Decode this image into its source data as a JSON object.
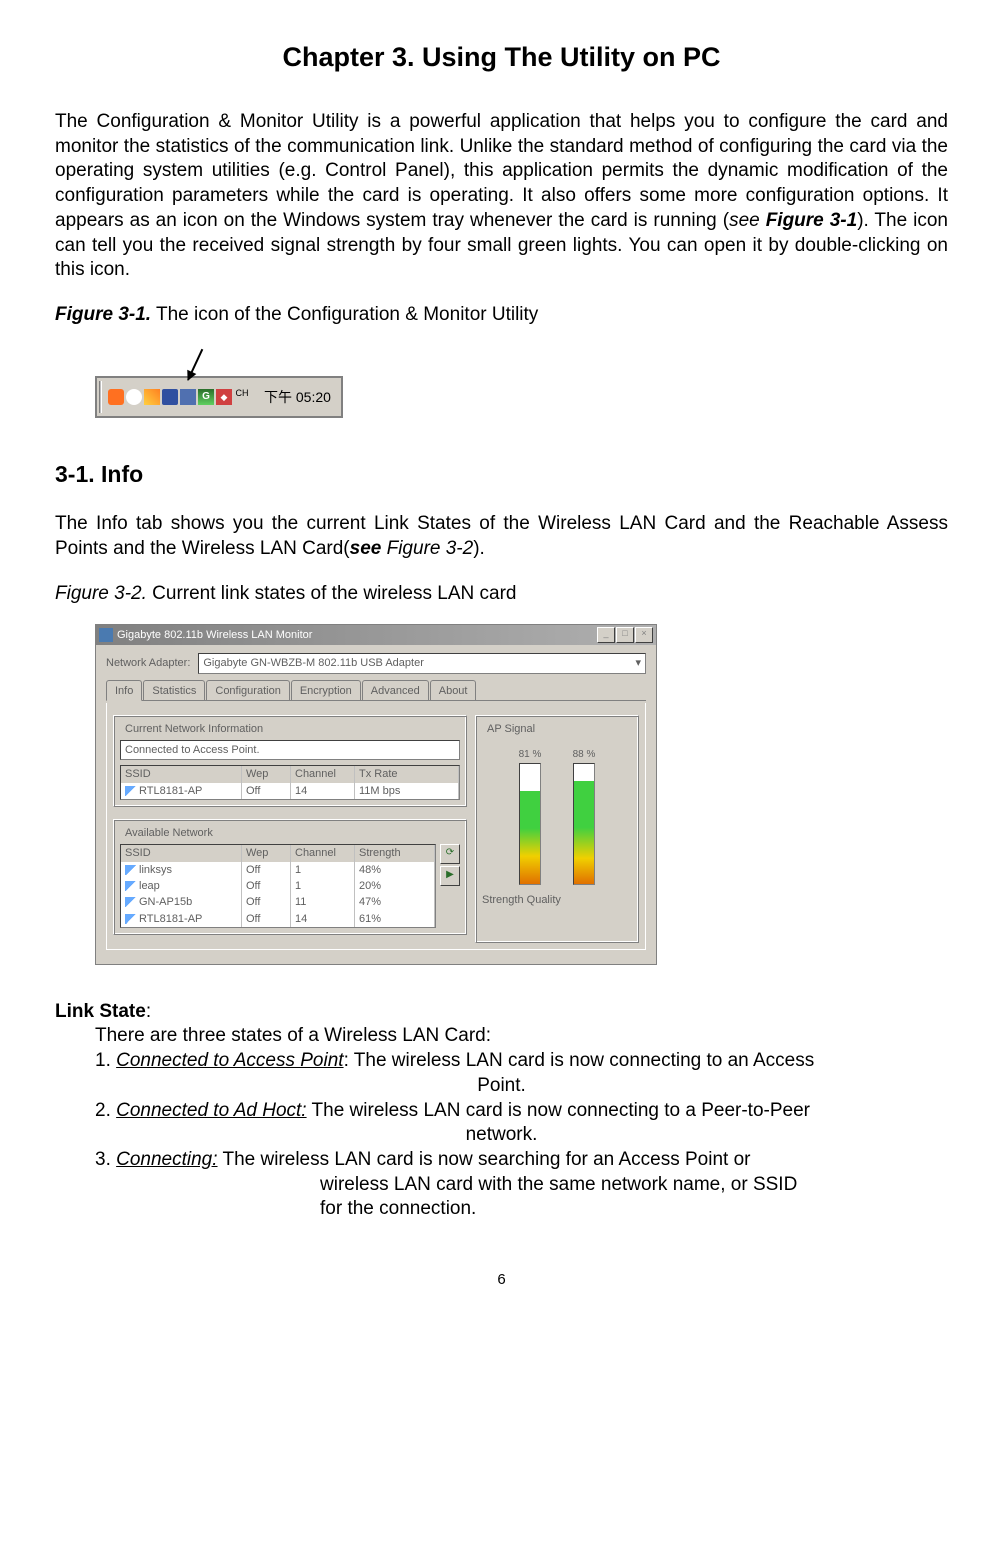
{
  "chapter_title": "Chapter 3. Using The Utility on PC",
  "intro_segments": [
    {
      "text": "The Configuration & Monitor Utility is a powerful application that helps you to configure the card and monitor the statistics of the communication link. Unlike the standard method of configuring the card via the operating system utilities (e.g. Control Panel), this application permits the dynamic modification of the configuration parameters while the card is operating. It also offers some more configuration options. It appears as an icon on the Windows system tray whenever the card is running (",
      "style": "plain"
    },
    {
      "text": "see ",
      "style": "italic"
    },
    {
      "text": "Figure 3-1",
      "style": "bold-italic"
    },
    {
      "text": "). The icon can tell you the received signal strength by four small green lights. You can open it by double-clicking on this icon.",
      "style": "plain"
    }
  ],
  "figure31_label": {
    "prefix": "Figure 3-1.",
    "text": "    The icon of the Configuration & Monitor Utility"
  },
  "taskbar": {
    "clock": "下午 05:20"
  },
  "section_heading": "3-1.    Info",
  "info_segments": [
    {
      "text": "The Info tab shows you the current Link States of the Wireless LAN Card and the Reachable Assess Points and the Wireless LAN Card(",
      "style": "plain"
    },
    {
      "text": "see",
      "style": "bold-italic"
    },
    {
      "text": " Figure 3-2",
      "style": "italic"
    },
    {
      "text": ").",
      "style": "plain"
    }
  ],
  "figure32_label": {
    "prefix": "Figure 3-2.",
    "text": "    Current link states of the wireless LAN card"
  },
  "window": {
    "title": "Gigabyte 802.11b Wireless LAN Monitor",
    "adapter_label": "Network Adapter:",
    "adapter_value": "Gigabyte GN-WBZB-M 802.11b USB Adapter",
    "tabs": [
      "Info",
      "Statistics",
      "Configuration",
      "Encryption",
      "Advanced",
      "About"
    ],
    "group_current": "Current Network Information",
    "status": "Connected to Access Point.",
    "table1_headers": [
      "SSID",
      "Wep",
      "Channel",
      "Tx Rate"
    ],
    "table1_row": [
      "RTL8181-AP",
      "Off",
      "14",
      "11M bps"
    ],
    "group_available": "Available Network",
    "table2_headers": [
      "SSID",
      "Wep",
      "Channel",
      "Strength"
    ],
    "table2_rows": [
      [
        "linksys",
        "Off",
        "1",
        "48%"
      ],
      [
        "leap",
        "Off",
        "1",
        "20%"
      ],
      [
        "GN-AP15b",
        "Off",
        "11",
        "47%"
      ],
      [
        "RTL8181-AP",
        "Off",
        "14",
        "61%"
      ]
    ],
    "ap_signal_label": "AP Signal",
    "bar1_pct": "81 %",
    "bar2_pct": "88 %",
    "strength_quality": "Strength Quality"
  },
  "link_state": {
    "heading": "Link State",
    "intro": "There are three states of a Wireless LAN Card:",
    "item1_num": "1. ",
    "item1_underline": "Connected to Access Point",
    "item1_rest": ": The wireless LAN card is now connecting to an Access",
    "item1_line2": "Point.",
    "item2_num": "2. ",
    "item2_underline": "Connected to Ad Hoct:",
    "item2_rest": " The wireless LAN card is now connecting to a Peer-to-Peer",
    "item2_line2": "network.",
    "item3_num": "3. ",
    "item3_underline": "Connecting:",
    "item3_rest": " The wireless LAN card is now searching for an Access Point or",
    "item3_line2": "wireless LAN card with the same network name, or SSID",
    "item3_line3": "for the connection."
  },
  "page_number": "6"
}
